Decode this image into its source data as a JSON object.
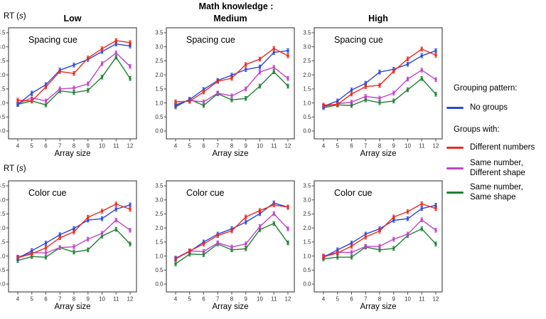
{
  "header": {
    "sup_title": "Math knowledge :",
    "col_titles": [
      "Low",
      "Medium",
      "High"
    ],
    "rt_label_prefix": "RT (",
    "rt_label_unit": "s",
    "rt_label_suffix": ")"
  },
  "legend": {
    "grouping_title": "Grouping pattern:",
    "no_groups_label": "No groups",
    "groups_title": "Groups with:",
    "different_numbers_label": "Different numbers",
    "same_number_different_shape_lines": [
      "Same number,",
      "Different shape"
    ],
    "same_number_same_shape_lines": [
      "Same number,",
      "Same shape"
    ]
  },
  "chart_data": {
    "type": "line",
    "x": [
      4,
      5,
      6,
      7,
      8,
      9,
      10,
      11,
      12
    ],
    "xlabel": "Array size",
    "ylabel": "RT (s)",
    "ylim": [
      0,
      3.5
    ],
    "yticks": [
      0.0,
      0.5,
      1.0,
      1.5,
      2.0,
      2.5,
      3.0,
      3.5
    ],
    "grid": false,
    "error_bar": 0.07,
    "legend_position": "right",
    "series_names": [
      "No groups",
      "Different numbers",
      "Same number, Different shape",
      "Same number, Same shape"
    ],
    "series_colors": [
      "#2b48d9",
      "#e92c1e",
      "#be44c8",
      "#1f8034"
    ],
    "panels": [
      {
        "cue": "Spacing cue",
        "math_knowledge": "Low",
        "series": [
          [
            0.95,
            1.35,
            1.65,
            2.17,
            2.35,
            2.55,
            2.83,
            3.1,
            3.03
          ],
          [
            1.1,
            1.07,
            1.57,
            2.12,
            2.05,
            2.6,
            2.93,
            3.22,
            3.15
          ],
          [
            0.97,
            1.18,
            1.07,
            1.5,
            1.53,
            1.68,
            2.4,
            2.78,
            2.3
          ],
          [
            0.95,
            1.07,
            0.93,
            1.43,
            1.37,
            1.45,
            1.92,
            2.63,
            1.87
          ]
        ]
      },
      {
        "cue": "Spacing cue",
        "math_knowledge": "Medium",
        "series": [
          [
            0.91,
            1.12,
            1.48,
            1.8,
            1.99,
            2.19,
            2.28,
            2.8,
            2.86
          ],
          [
            1.04,
            1.06,
            1.39,
            1.77,
            1.88,
            2.37,
            2.56,
            2.94,
            2.68
          ],
          [
            0.94,
            1.09,
            1.04,
            1.35,
            1.25,
            1.5,
            2.1,
            2.27,
            1.87
          ],
          [
            0.86,
            1.13,
            0.91,
            1.33,
            1.11,
            1.16,
            1.6,
            2.11,
            1.6
          ]
        ]
      },
      {
        "cue": "Spacing cue",
        "math_knowledge": "High",
        "series": [
          [
            0.88,
            1.07,
            1.46,
            1.7,
            2.1,
            2.2,
            2.38,
            2.68,
            2.86
          ],
          [
            0.92,
            0.95,
            1.32,
            1.58,
            1.63,
            2.13,
            2.57,
            2.92,
            2.7
          ],
          [
            0.87,
            0.97,
            1.03,
            1.23,
            1.17,
            1.35,
            1.85,
            2.17,
            1.83
          ],
          [
            0.83,
            0.93,
            0.91,
            1.11,
            1.01,
            1.07,
            1.47,
            1.87,
            1.31
          ]
        ]
      },
      {
        "cue": "Color cue",
        "math_knowledge": "Low",
        "series": [
          [
            0.92,
            1.19,
            1.46,
            1.76,
            1.98,
            2.28,
            2.33,
            2.67,
            2.82
          ],
          [
            0.94,
            1.08,
            1.29,
            1.65,
            1.86,
            2.38,
            2.6,
            2.85,
            2.67
          ],
          [
            0.96,
            1.12,
            1.11,
            1.3,
            1.33,
            1.6,
            1.81,
            2.28,
            1.92
          ],
          [
            0.84,
            0.98,
            0.96,
            1.3,
            1.14,
            1.22,
            1.71,
            1.95,
            1.43
          ]
        ]
      },
      {
        "cue": "Color cue",
        "math_knowledge": "Medium",
        "series": [
          [
            0.92,
            1.16,
            1.5,
            1.78,
            1.97,
            2.21,
            2.51,
            2.89,
            2.74
          ],
          [
            0.89,
            1.18,
            1.43,
            1.73,
            1.9,
            2.39,
            2.62,
            2.82,
            2.74
          ],
          [
            0.92,
            1.18,
            1.16,
            1.47,
            1.32,
            1.43,
            2.05,
            2.51,
            1.97
          ],
          [
            0.72,
            1.07,
            1.05,
            1.43,
            1.22,
            1.26,
            1.94,
            2.16,
            1.47
          ]
        ]
      },
      {
        "cue": "Color cue",
        "math_knowledge": "High",
        "series": [
          [
            0.95,
            1.22,
            1.46,
            1.78,
            1.97,
            2.27,
            2.33,
            2.69,
            2.81
          ],
          [
            0.97,
            1.11,
            1.35,
            1.68,
            1.89,
            2.39,
            2.58,
            2.86,
            2.69
          ],
          [
            1.0,
            1.13,
            1.13,
            1.34,
            1.35,
            1.6,
            1.78,
            2.29,
            1.92
          ],
          [
            0.9,
            0.96,
            0.96,
            1.32,
            1.22,
            1.27,
            1.73,
            1.97,
            1.43
          ]
        ]
      }
    ]
  }
}
